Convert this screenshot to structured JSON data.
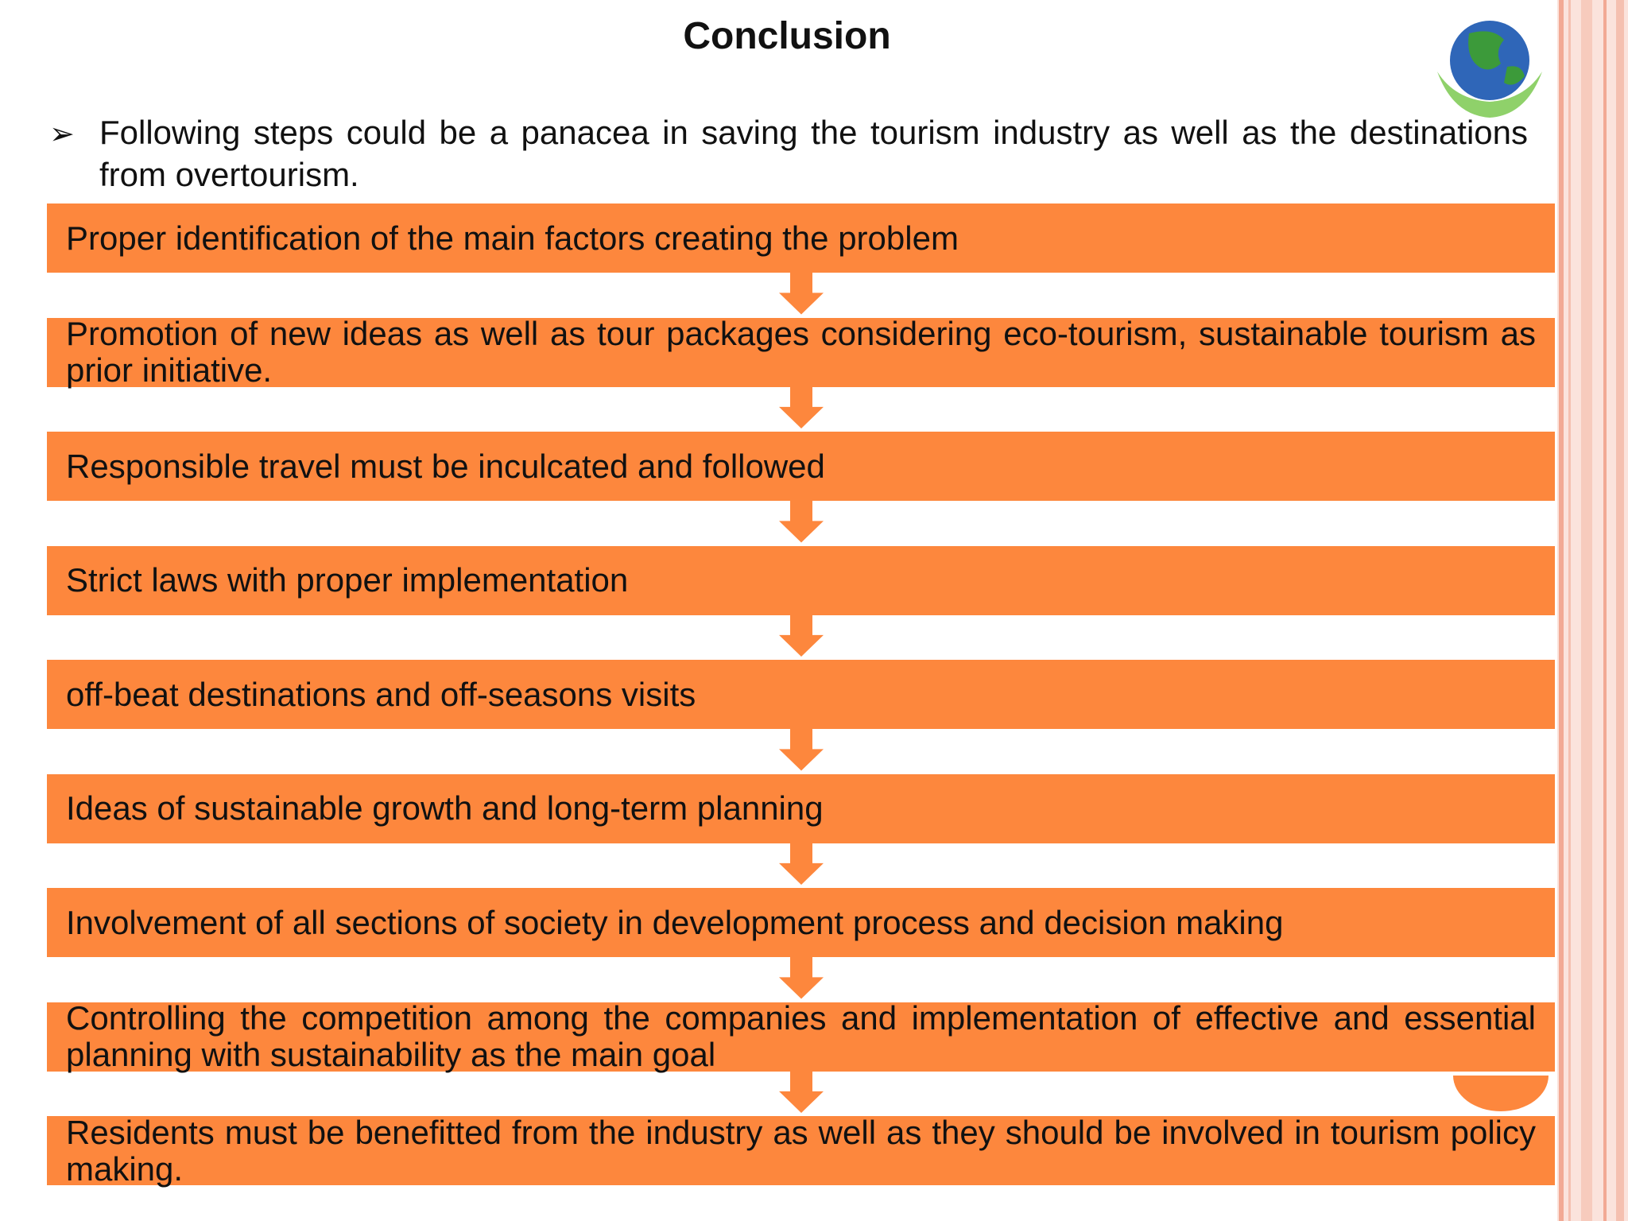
{
  "title": "Conclusion",
  "intro": "Following steps could be a panacea in saving the tourism industry as well as the destinations from overtourism.",
  "steps": [
    "Proper identification of the main factors creating the problem",
    "Promotion of new ideas as well as tour packages considering eco-tourism, sustainable tourism as prior initiative.",
    "Responsible travel must be inculcated and followed",
    "Strict laws with proper implementation",
    "off-beat destinations and off-seasons visits",
    "Ideas of sustainable growth and long-term planning",
    "Involvement of all sections of society in development process and decision making",
    "Controlling the competition among the companies and implementation of  effective and essential planning with sustainability as the main goal",
    "Residents must be benefitted from the industry as well as they should be involved in tourism policy making."
  ]
}
